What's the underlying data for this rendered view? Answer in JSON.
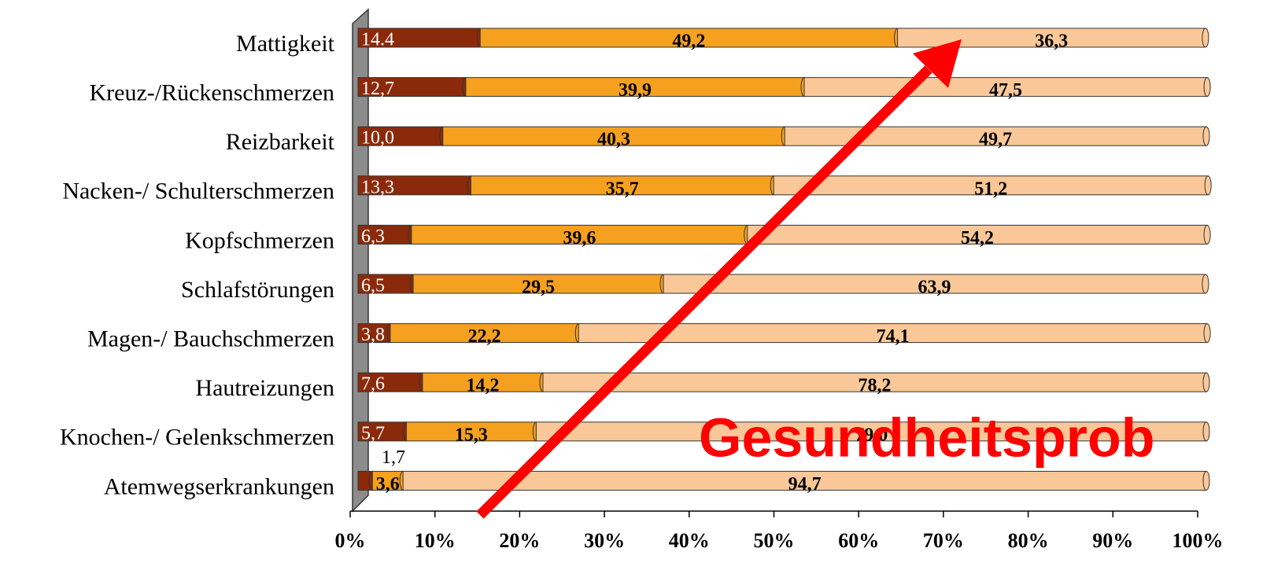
{
  "chart_data": {
    "type": "bar",
    "orientation": "horizontal",
    "stacked": true,
    "categories": [
      "Mattigkeit",
      "Kreuz-/Rückenschmerzen",
      "Reizbarkeit",
      "Nacken-/ Schulterschmerzen",
      "Kopfschmerzen",
      "Schlafstörungen",
      "Magen-/ Bauchschmerzen",
      "Hautreizungen",
      "Knochen-/ Gelenkschmerzen",
      "Atemwegserkrankungen"
    ],
    "series": [
      {
        "color": "#8b2a0a",
        "values": [
          14.4,
          12.7,
          10.0,
          13.3,
          6.3,
          6.5,
          3.8,
          7.6,
          5.7,
          1.7
        ],
        "value_labels": [
          "14.4",
          "12,7",
          "10,0",
          "13,3",
          "6,3",
          "6,5",
          "3,8",
          "7,6",
          "5,7",
          "1,7"
        ]
      },
      {
        "color": "#f5a01e",
        "values": [
          49.2,
          39.9,
          40.3,
          35.7,
          39.6,
          29.5,
          22.2,
          14.2,
          15.3,
          3.6
        ],
        "value_labels": [
          "49,2",
          "39,9",
          "40,3",
          "35,7",
          "39,6",
          "29,5",
          "22,2",
          "14,2",
          "15,3",
          "3,6"
        ]
      },
      {
        "color": "#fac898",
        "values": [
          36.3,
          47.5,
          49.7,
          51.2,
          54.2,
          63.9,
          74.1,
          78.2,
          79.0,
          94.7
        ],
        "value_labels": [
          "36,3",
          "47,5",
          "49,7",
          "51,2",
          "54,2",
          "63,9",
          "74,1",
          "78,2",
          "79,0",
          "94,7"
        ]
      }
    ],
    "xlim": [
      0,
      100
    ],
    "xticks": [
      {
        "value": 0,
        "label": "0%"
      },
      {
        "value": 10,
        "label": "10%"
      },
      {
        "value": 20,
        "label": "20%"
      },
      {
        "value": 30,
        "label": "30%"
      },
      {
        "value": 40,
        "label": "40%"
      },
      {
        "value": 50,
        "label": "50%"
      },
      {
        "value": 60,
        "label": "60%"
      },
      {
        "value": 70,
        "label": "70%"
      },
      {
        "value": 80,
        "label": "80%"
      },
      {
        "value": 90,
        "label": "90%"
      },
      {
        "value": 100,
        "label": "100%"
      }
    ],
    "annotations": [
      "Gesundheitsprob"
    ]
  }
}
